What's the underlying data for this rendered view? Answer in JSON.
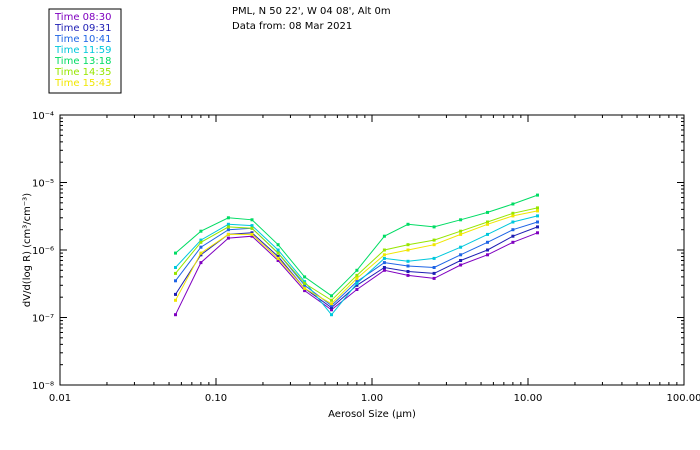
{
  "chart_data": {
    "type": "line",
    "title_line1": "PML, N 50 22', W 04 08', Alt 0m",
    "title_line2": "Data from: 08 Mar 2021",
    "xlabel": "Aerosol Size (µm)",
    "ylabel": "dV/d(log R) (cm³/cm⁻³)",
    "x_scale": "log",
    "y_scale": "log",
    "xlim": [
      0.01,
      100.0
    ],
    "ylim": [
      1e-08,
      0.0001
    ],
    "x_ticks": [
      {
        "value": 0.01,
        "label": "0.01"
      },
      {
        "value": 0.1,
        "label": "0.10"
      },
      {
        "value": 1.0,
        "label": "1.00"
      },
      {
        "value": 10.0,
        "label": "10.00"
      },
      {
        "value": 100.0,
        "label": "100.00"
      }
    ],
    "y_ticks": [
      {
        "value": 1e-08,
        "label": "10⁻⁸"
      },
      {
        "value": 1e-07,
        "label": "10⁻⁷"
      },
      {
        "value": 1e-06,
        "label": "10⁻⁶"
      },
      {
        "value": 1e-05,
        "label": "10⁻⁵"
      },
      {
        "value": 0.0001,
        "label": "10⁻⁴"
      }
    ],
    "legend_position": "top-left",
    "x": [
      0.055,
      0.08,
      0.12,
      0.17,
      0.25,
      0.37,
      0.55,
      0.8,
      1.2,
      1.7,
      2.5,
      3.7,
      5.5,
      8.0,
      11.5
    ],
    "series": [
      {
        "name": "Time 08:30",
        "color": "#7f00c0",
        "values": [
          1.1e-07,
          6.5e-07,
          1.5e-06,
          1.6e-06,
          7e-07,
          2.5e-07,
          1.3e-07,
          2.6e-07,
          5e-07,
          4.2e-07,
          3.8e-07,
          6e-07,
          8.5e-07,
          1.3e-06,
          1.8e-06
        ]
      },
      {
        "name": "Time 09:31",
        "color": "#1e1eb4",
        "values": [
          2.2e-07,
          8.5e-07,
          1.7e-06,
          1.8e-06,
          8e-07,
          2.7e-07,
          1.4e-07,
          3e-07,
          5.5e-07,
          4.8e-07,
          4.5e-07,
          7e-07,
          1e-06,
          1.6e-06,
          2.2e-06
        ]
      },
      {
        "name": "Time 10:41",
        "color": "#1e64e6",
        "values": [
          3.5e-07,
          1.1e-06,
          2e-06,
          2.1e-06,
          9e-07,
          3e-07,
          1.5e-07,
          3.4e-07,
          6.5e-07,
          5.8e-07,
          5.5e-07,
          8.5e-07,
          1.3e-06,
          2e-06,
          2.6e-06
        ]
      },
      {
        "name": "Time 11:59",
        "color": "#00c8dc",
        "values": [
          5.5e-07,
          1.4e-06,
          2.4e-06,
          2.3e-06,
          1e-06,
          3.4e-07,
          1.1e-07,
          3.2e-07,
          7.5e-07,
          6.8e-07,
          7.5e-07,
          1.1e-06,
          1.7e-06,
          2.6e-06,
          3.2e-06
        ]
      },
      {
        "name": "Time 13:18",
        "color": "#00dc64",
        "values": [
          9e-07,
          1.9e-06,
          3e-06,
          2.8e-06,
          1.2e-06,
          4e-07,
          2.1e-07,
          5e-07,
          1.6e-06,
          2.4e-06,
          2.2e-06,
          2.8e-06,
          3.6e-06,
          4.8e-06,
          6.5e-06
        ]
      },
      {
        "name": "Time 14:35",
        "color": "#96e600",
        "values": [
          4.5e-07,
          1.3e-06,
          2.2e-06,
          2.1e-06,
          9e-07,
          3.2e-07,
          1.8e-07,
          4.2e-07,
          1e-06,
          1.2e-06,
          1.4e-06,
          1.9e-06,
          2.6e-06,
          3.5e-06,
          4.2e-06
        ]
      },
      {
        "name": "Time 15:43",
        "color": "#f0e600",
        "values": [
          1.8e-07,
          9e-07,
          1.7e-06,
          1.7e-06,
          7.5e-07,
          2.7e-07,
          1.6e-07,
          3.8e-07,
          8.5e-07,
          1e-06,
          1.2e-06,
          1.7e-06,
          2.4e-06,
          3.2e-06,
          3.8e-06
        ]
      }
    ]
  }
}
